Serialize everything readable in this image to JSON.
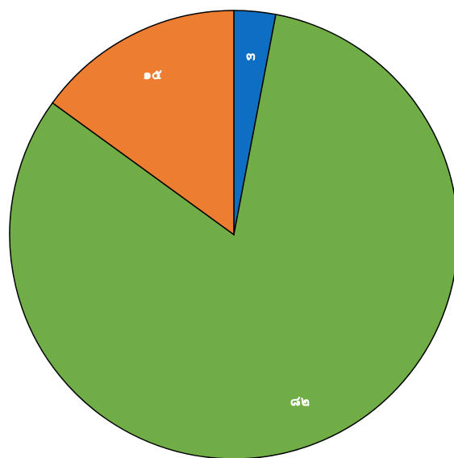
{
  "chart_data": {
    "type": "pie",
    "title": "",
    "start_angle_deg": 0,
    "direction": "clockwise",
    "slices": [
      {
        "value": 3,
        "label": "๓",
        "color": "#0E6FC2"
      },
      {
        "value": 82,
        "label": "๘๒",
        "color": "#70AD47"
      },
      {
        "value": 15,
        "label": "๑๕",
        "color": "#ED7D31"
      }
    ],
    "legend": "none"
  }
}
